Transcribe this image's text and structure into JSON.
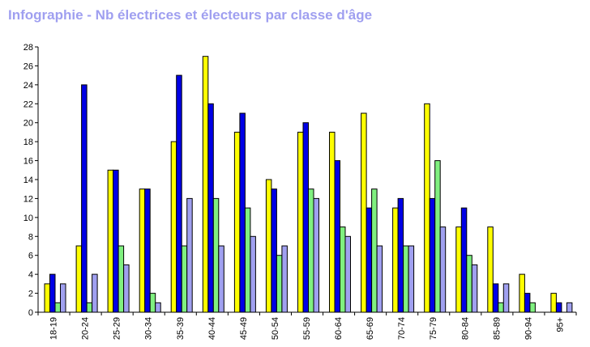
{
  "title": "Infographie - Nb électrices et électeurs par classe d'âge",
  "colors": {
    "title": "#9f9ff0",
    "series": [
      "#ffff00",
      "#0000e6",
      "#80f080",
      "#a0a0f0"
    ],
    "axis": "#000000"
  },
  "chart_data": {
    "type": "bar",
    "title": "Infographie - Nb électrices et électeurs par classe d'âge",
    "xlabel": "",
    "ylabel": "",
    "ylim": [
      0,
      28
    ],
    "yticks": [
      0,
      2,
      4,
      6,
      8,
      10,
      12,
      14,
      16,
      18,
      20,
      22,
      24,
      26,
      28
    ],
    "grid": false,
    "legend": "none",
    "categories": [
      "18-19",
      "20-24",
      "25-29",
      "30-34",
      "35-39",
      "40-44",
      "45-49",
      "50-54",
      "55-59",
      "60-64",
      "65-69",
      "70-74",
      "75-79",
      "80-84",
      "85-89",
      "90-94",
      "95+"
    ],
    "series": [
      {
        "color": "#ffff00",
        "values": [
          3,
          7,
          15,
          13,
          18,
          27,
          19,
          14,
          19,
          19,
          21,
          11,
          22,
          9,
          9,
          4,
          2
        ]
      },
      {
        "color": "#0000e6",
        "values": [
          4,
          24,
          15,
          13,
          25,
          22,
          21,
          13,
          20,
          16,
          11,
          12,
          12,
          11,
          3,
          2,
          1
        ]
      },
      {
        "color": "#80f080",
        "values": [
          1,
          1,
          7,
          2,
          7,
          12,
          11,
          6,
          13,
          9,
          13,
          7,
          16,
          6,
          1,
          1,
          0
        ]
      },
      {
        "color": "#a0a0f0",
        "values": [
          3,
          4,
          5,
          1,
          12,
          7,
          8,
          7,
          12,
          8,
          7,
          7,
          9,
          5,
          3,
          0,
          1
        ]
      }
    ]
  }
}
